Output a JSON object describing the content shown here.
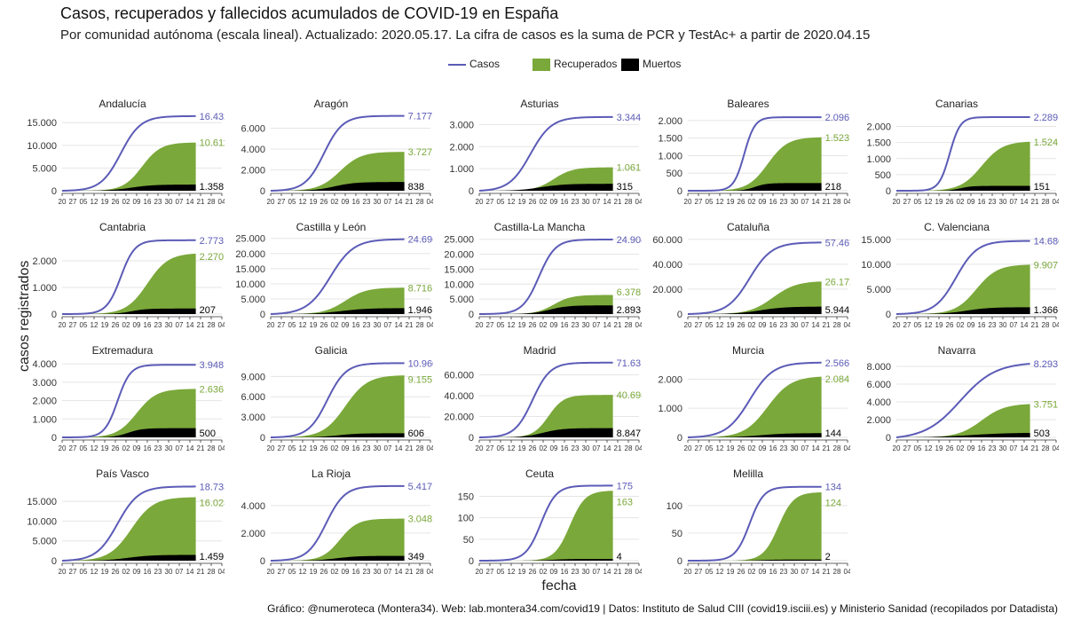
{
  "title": "Casos, recuperados y fallecidos acumulados de COVID-19 en España",
  "subtitle": "Por comunidad autónoma (escala lineal). Actualizado: 2020.05.17. La cifra de casos es la suma de PCR y TestAc+ a partir de 2020.04.15",
  "legend": {
    "cases": "Casos",
    "recovered": "Recuperados",
    "deaths": "Muertos"
  },
  "colors": {
    "cases": "#5b5bb7",
    "recovered": "#7aa83a",
    "deaths": "#000000"
  },
  "caption": "Gráfico: @numeroteca (Montera34). Web: lab.montera34.com/covid19 | Datos: Instituto de Salud CIII (covid19.isciii.es) y Ministerio Sanidad (recopilados por Datadista)",
  "chart_data": {
    "type": "line",
    "xlabel": "fecha",
    "ylabel": "casos registrados",
    "x_tick_labels": [
      "20",
      "27",
      "05",
      "12",
      "19",
      "26",
      "02",
      "09",
      "16",
      "23",
      "30",
      "07",
      "14",
      "21",
      "28",
      "04"
    ],
    "grid": true,
    "legend_position": "top",
    "panels": [
      {
        "name": "Andalucía",
        "cases": 16432,
        "recovered": 10611,
        "deaths": 1358,
        "yticks": [
          0,
          5000,
          10000,
          15000
        ],
        "ytick_labels": [
          "0",
          "5.000",
          "10.000",
          "15.000"
        ],
        "ymax": 17000,
        "cases_label": "16.432",
        "recovered_label": "10.611",
        "deaths_label": "1.358"
      },
      {
        "name": "Aragón",
        "cases": 7177,
        "recovered": 3727,
        "deaths": 838,
        "yticks": [
          0,
          2000,
          4000,
          6000
        ],
        "ytick_labels": [
          "0",
          "2.000",
          "4.000",
          "6.000"
        ],
        "ymax": 7400,
        "cases_label": "7.177",
        "recovered_label": "3.727",
        "deaths_label": "838"
      },
      {
        "name": "Asturias",
        "cases": 3344,
        "recovered": 1061,
        "deaths": 315,
        "yticks": [
          0,
          1000,
          2000,
          3000
        ],
        "ytick_labels": [
          "0",
          "1.000",
          "2.000",
          "3.000"
        ],
        "ymax": 3500,
        "cases_label": "3.344",
        "recovered_label": "1.061",
        "deaths_label": "315"
      },
      {
        "name": "Baleares",
        "cases": 2096,
        "recovered": 1523,
        "deaths": 218,
        "yticks": [
          0,
          500,
          1000,
          1500,
          2000
        ],
        "ytick_labels": [
          "0",
          "500",
          "1.000",
          "1.500",
          "2.000"
        ],
        "ymax": 2200,
        "cases_label": "2.096",
        "recovered_label": "1.523",
        "deaths_label": "218"
      },
      {
        "name": "Canarias",
        "cases": 2289,
        "recovered": 1524,
        "deaths": 151,
        "yticks": [
          0,
          500,
          1000,
          1500,
          2000
        ],
        "ytick_labels": [
          "0",
          "500",
          "1.000",
          "1.500",
          "2.000"
        ],
        "ymax": 2400,
        "cases_label": "2.289",
        "recovered_label": "1.524",
        "deaths_label": "151"
      },
      {
        "name": "Cantabria",
        "cases": 2773,
        "recovered": 2270,
        "deaths": 207,
        "yticks": [
          0,
          1000,
          2000
        ],
        "ytick_labels": [
          "0",
          "1.000",
          "2.000"
        ],
        "ymax": 2900,
        "cases_label": "2.773",
        "recovered_label": "2.270",
        "deaths_label": "207"
      },
      {
        "name": "Castilla y León",
        "cases": 24696,
        "recovered": 8716,
        "deaths": 1946,
        "yticks": [
          0,
          5000,
          10000,
          15000,
          20000,
          25000
        ],
        "ytick_labels": [
          "0",
          "5.000",
          "10.000",
          "15.000",
          "20.000",
          "25.000"
        ],
        "ymax": 25500,
        "cases_label": "24.696",
        "recovered_label": "8.716",
        "deaths_label": "1.946"
      },
      {
        "name": "Castilla-La Mancha",
        "cases": 24908,
        "recovered": 6378,
        "deaths": 2893,
        "yticks": [
          0,
          5000,
          10000,
          15000,
          20000,
          25000
        ],
        "ytick_labels": [
          "0",
          "5.000",
          "10.000",
          "15.000",
          "20.000",
          "25.000"
        ],
        "ymax": 25800,
        "cases_label": "24.908",
        "recovered_label": "6.378",
        "deaths_label": "2.893"
      },
      {
        "name": "Cataluña",
        "cases": 57467,
        "recovered": 26172,
        "deaths": 5944,
        "yticks": [
          0,
          20000,
          40000,
          60000
        ],
        "ytick_labels": [
          "0",
          "20.000",
          "40.000",
          "60.000"
        ],
        "ymax": 62000,
        "cases_label": "57.467",
        "recovered_label": "26.172",
        "deaths_label": "5.944"
      },
      {
        "name": "C. Valenciana",
        "cases": 14680,
        "recovered": 9907,
        "deaths": 1366,
        "yticks": [
          0,
          5000,
          10000,
          15000
        ],
        "ytick_labels": [
          "0",
          "5.000",
          "10.000",
          "15.000"
        ],
        "ymax": 15500,
        "cases_label": "14.680",
        "recovered_label": "9.907",
        "deaths_label": "1.366"
      },
      {
        "name": "Extremadura",
        "cases": 3948,
        "recovered": 2636,
        "deaths": 500,
        "yticks": [
          0,
          1000,
          2000,
          3000,
          4000
        ],
        "ytick_labels": [
          "0",
          "1.000",
          "2.000",
          "3.000",
          "4.000"
        ],
        "ymax": 4200,
        "cases_label": "3.948",
        "recovered_label": "2.636",
        "deaths_label": "500"
      },
      {
        "name": "Galicia",
        "cases": 10960,
        "recovered": 9155,
        "deaths": 606,
        "yticks": [
          0,
          3000,
          6000,
          9000
        ],
        "ytick_labels": [
          "0",
          "3.000",
          "6.000",
          "9.000"
        ],
        "ymax": 11400,
        "cases_label": "10.960",
        "recovered_label": "9.155",
        "deaths_label": "606"
      },
      {
        "name": "Madrid",
        "cases": 71631,
        "recovered": 40698,
        "deaths": 8847,
        "yticks": [
          0,
          20000,
          40000,
          60000
        ],
        "ytick_labels": [
          "0",
          "20.000",
          "40.000",
          "60.000"
        ],
        "ymax": 74000,
        "cases_label": "71.631",
        "recovered_label": "40.698",
        "deaths_label": "8.847"
      },
      {
        "name": "Murcia",
        "cases": 2566,
        "recovered": 2084,
        "deaths": 144,
        "yticks": [
          0,
          1000,
          2000
        ],
        "ytick_labels": [
          "0",
          "1.000",
          "2.000"
        ],
        "ymax": 2650,
        "cases_label": "2.566",
        "recovered_label": "2.084",
        "deaths_label": "144"
      },
      {
        "name": "Navarra",
        "cases": 8293,
        "recovered": 3751,
        "deaths": 503,
        "yticks": [
          0,
          2000,
          4000,
          6000,
          8000
        ],
        "ytick_labels": [
          "0",
          "2.000",
          "4.000",
          "6.000",
          "8.000"
        ],
        "ymax": 8700,
        "cases_label": "8.293",
        "recovered_label": "3.751",
        "deaths_label": "503"
      },
      {
        "name": "País Vasco",
        "cases": 18733,
        "recovered": 16028,
        "deaths": 1459,
        "yticks": [
          0,
          5000,
          10000,
          15000
        ],
        "ytick_labels": [
          "0",
          "5.000",
          "10.000",
          "15.000"
        ],
        "ymax": 19500,
        "cases_label": "18.733",
        "recovered_label": "16.028",
        "deaths_label": "1.459"
      },
      {
        "name": "La Rioja",
        "cases": 5417,
        "recovered": 3048,
        "deaths": 349,
        "yticks": [
          0,
          2000,
          4000
        ],
        "ytick_labels": [
          "0",
          "2.000",
          "4.000"
        ],
        "ymax": 5600,
        "cases_label": "5.417",
        "recovered_label": "3.048",
        "deaths_label": "349"
      },
      {
        "name": "Ceuta",
        "cases": 175,
        "recovered": 163,
        "deaths": 4,
        "yticks": [
          0,
          50,
          100,
          150
        ],
        "ytick_labels": [
          "0",
          "50",
          "100",
          "150"
        ],
        "ymax": 180,
        "cases_label": "175",
        "recovered_label": "163",
        "deaths_label": "4"
      },
      {
        "name": "Melilla",
        "cases": 134,
        "recovered": 124,
        "deaths": 2,
        "yticks": [
          0,
          50,
          100
        ],
        "ytick_labels": [
          "0",
          "50",
          "100"
        ],
        "ymax": 140,
        "cases_label": "134",
        "recovered_label": "124",
        "deaths_label": "2"
      }
    ]
  }
}
